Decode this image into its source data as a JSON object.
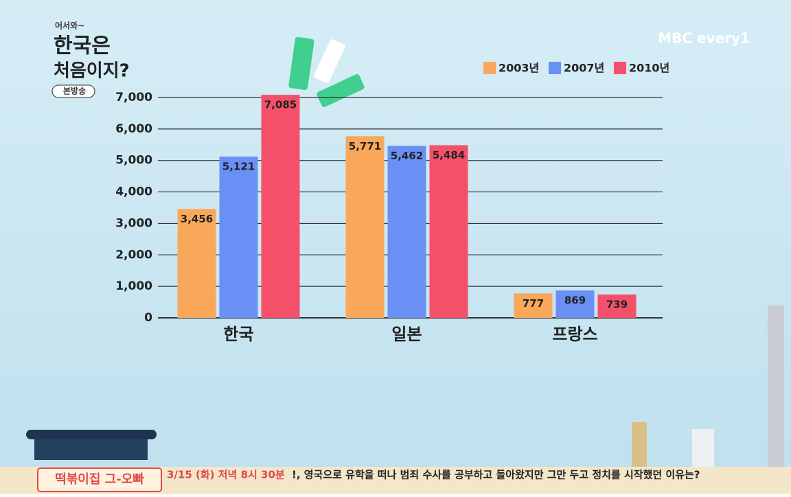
{
  "chart_data": {
    "type": "bar",
    "categories": [
      "한국",
      "일본",
      "프랑스"
    ],
    "series": [
      {
        "name": "2003년",
        "color": "#f9a85b",
        "values": [
          3456,
          5771,
          777
        ],
        "value_labels": [
          "3,456",
          "5,771",
          "777"
        ]
      },
      {
        "name": "2007년",
        "color": "#6a8ff5",
        "values": [
          5121,
          5462,
          869
        ],
        "value_labels": [
          "5,121",
          "5,462",
          "869"
        ]
      },
      {
        "name": "2010년",
        "color": "#f5506a",
        "values": [
          7085,
          5484,
          739
        ],
        "value_labels": [
          "7,085",
          "5,484",
          "739"
        ]
      }
    ],
    "ylim": [
      0,
      7000
    ],
    "yticks": [
      0,
      {
        "value": 1000,
        "label": "1,000"
      },
      {
        "value": 2000,
        "label": "2,000"
      },
      {
        "value": 3000,
        "label": "3,000"
      },
      {
        "value": 4000,
        "label": "4,000"
      },
      {
        "value": 5000,
        "label": "5,000"
      },
      {
        "value": 6000,
        "label": "6,000"
      },
      {
        "value": 7000,
        "label": "7,000"
      }
    ],
    "grid": true,
    "legend": "top-right"
  },
  "overlay": {
    "show_logo": [
      "어서와~",
      "한국은",
      "처음이지?"
    ],
    "live_badge": "본방송",
    "channel": "MBC every1",
    "ticker_title": "떡볶이집 그-오빠",
    "ticker_time": "3/15 (화) 저녁 8시 30분",
    "ticker_text": "!, 영국으로 유학을 떠나 범죄 수사를 공부하고 돌아왔지만 그만 두고 정치를 시작했던 이유는?"
  }
}
